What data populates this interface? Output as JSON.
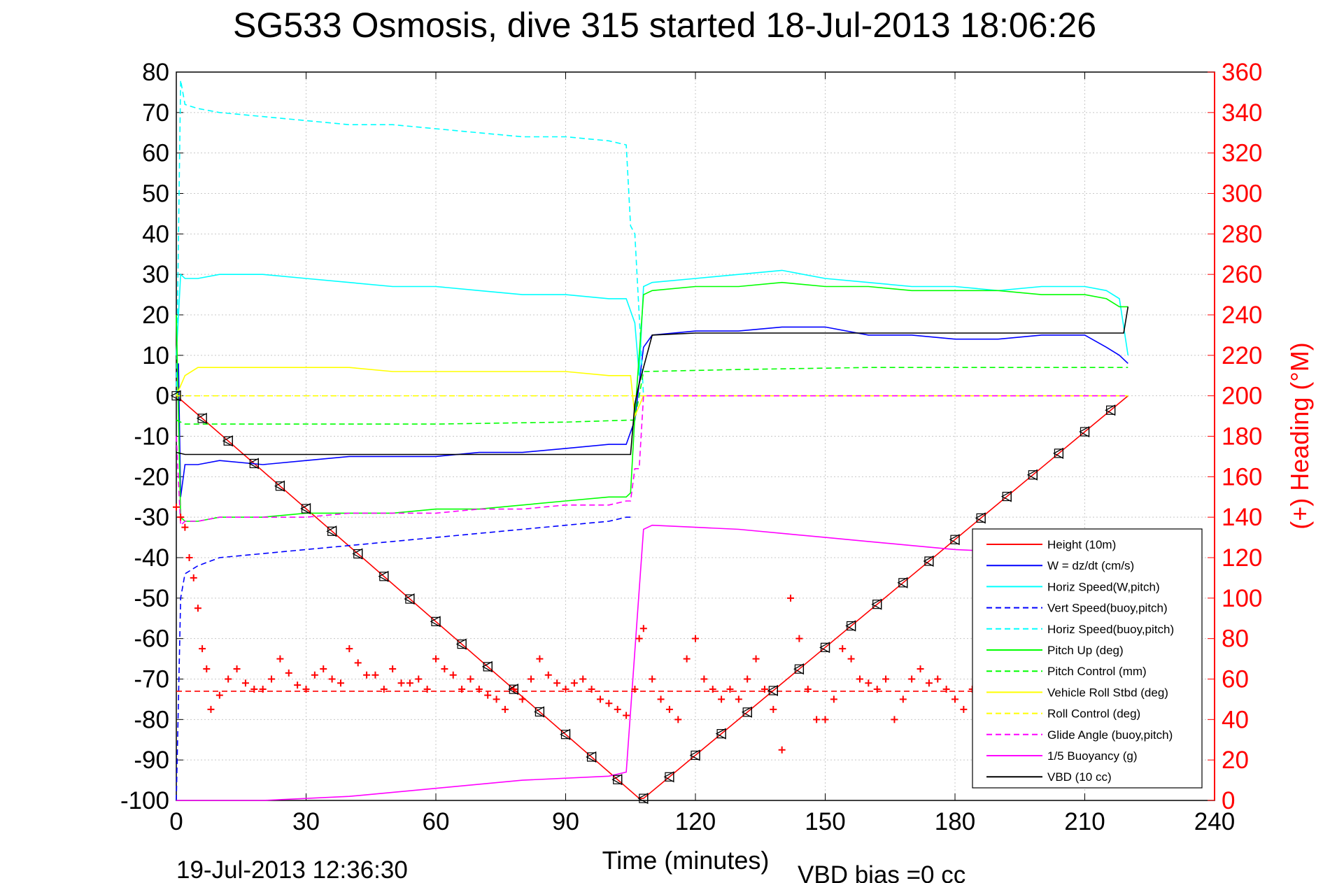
{
  "chart_data": {
    "type": "line",
    "title": "SG533 Osmosis, dive 315 started 18-Jul-2013 18:06:26",
    "xlabel": "Time (minutes)",
    "ylabel": "",
    "y2label": "(+) Heading (°M)",
    "xlim": [
      0,
      240
    ],
    "ylim": [
      -100,
      80
    ],
    "y2lim": [
      0,
      360
    ],
    "x_ticks": [
      "0",
      "30",
      "60",
      "90",
      "120",
      "150",
      "180",
      "210",
      "240"
    ],
    "y_ticks": [
      "80",
      "70",
      "60",
      "50",
      "40",
      "30",
      "20",
      "10",
      "0",
      "-10",
      "-20",
      "-30",
      "-40",
      "-50",
      "-60",
      "-70",
      "-80",
      "-90",
      "-100"
    ],
    "y2_ticks": [
      "360",
      "340",
      "320",
      "300",
      "280",
      "260",
      "240",
      "220",
      "200",
      "180",
      "160",
      "140",
      "120",
      "100",
      "80",
      "60",
      "40",
      "20",
      "0"
    ],
    "grid": true,
    "legend_position": "bottom-right",
    "footer_timestamp": "19-Jul-2013 12:36:30",
    "footer_note": "VBD bias =0 cc",
    "series": [
      {
        "name": "Height (10m)",
        "color": "#ff0000",
        "style": "solid",
        "x": [
          0,
          107,
          108,
          220
        ],
        "y": [
          0,
          -99.5,
          -99.5,
          0
        ]
      },
      {
        "name": "W = dz/dt (cm/s)",
        "color": "#0000ff",
        "style": "solid",
        "x": [
          0,
          0.5,
          1,
          2,
          5,
          10,
          20,
          30,
          40,
          50,
          60,
          70,
          80,
          90,
          100,
          104,
          106,
          108,
          110,
          120,
          130,
          140,
          150,
          160,
          170,
          180,
          190,
          200,
          210,
          215,
          218,
          220
        ],
        "y": [
          5,
          8,
          -25,
          -17,
          -17,
          -16,
          -17,
          -16,
          -15,
          -15,
          -15,
          -14,
          -14,
          -13,
          -12,
          -12,
          -6,
          12,
          15,
          16,
          16,
          17,
          17,
          15,
          15,
          14,
          14,
          15,
          15,
          12,
          10,
          8
        ]
      },
      {
        "name": "Horiz Speed(W,pitch)",
        "color": "#00ffff",
        "style": "solid",
        "x": [
          0,
          1,
          2,
          5,
          10,
          20,
          30,
          40,
          50,
          60,
          70,
          80,
          90,
          100,
          104,
          106,
          107,
          108,
          110,
          120,
          130,
          140,
          150,
          160,
          170,
          180,
          190,
          200,
          210,
          215,
          218,
          220
        ],
        "y": [
          10,
          30,
          29,
          29,
          30,
          30,
          29,
          28,
          27,
          27,
          26,
          25,
          25,
          24,
          24,
          18,
          5,
          27,
          28,
          29,
          30,
          31,
          29,
          28,
          27,
          27,
          26,
          27,
          27,
          26,
          24,
          10
        ]
      },
      {
        "name": "Vert Speed(buoy,pitch)",
        "color": "#0000ff",
        "style": "dashed",
        "x": [
          0,
          1,
          2,
          5,
          10,
          20,
          30,
          40,
          50,
          60,
          70,
          80,
          90,
          100,
          104,
          105
        ],
        "y": [
          -100,
          -50,
          -44,
          -42,
          -40,
          -39,
          -38,
          -37,
          -36,
          -35,
          -34,
          -33,
          -32,
          -31,
          -30,
          -30
        ]
      },
      {
        "name": "Horiz Speed(buoy,pitch)",
        "color": "#00ffff",
        "style": "dashed",
        "x": [
          0,
          1,
          2,
          5,
          10,
          20,
          30,
          40,
          50,
          60,
          70,
          80,
          90,
          100,
          104,
          105,
          106,
          107,
          108
        ],
        "y": [
          0,
          78,
          72,
          71,
          70,
          69,
          68,
          67,
          67,
          66,
          65,
          64,
          64,
          63,
          62,
          42,
          40,
          20,
          0
        ]
      },
      {
        "name": "Pitch Up (deg)",
        "color": "#00ff00",
        "style": "solid",
        "x": [
          0,
          1,
          2,
          5,
          10,
          20,
          30,
          40,
          50,
          60,
          70,
          80,
          90,
          100,
          104,
          105,
          106,
          108,
          110,
          120,
          130,
          140,
          150,
          160,
          170,
          180,
          190,
          200,
          210,
          215,
          218,
          220
        ],
        "y": [
          20,
          -30,
          -31,
          -31,
          -30,
          -30,
          -29,
          -29,
          -29,
          -28,
          -28,
          -27,
          -26,
          -25,
          -25,
          -24,
          -5,
          25,
          26,
          27,
          27,
          28,
          27,
          27,
          26,
          26,
          26,
          25,
          25,
          24,
          22,
          22
        ]
      },
      {
        "name": "Pitch Control (mm)",
        "color": "#00ff00",
        "style": "dashed",
        "x": [
          0,
          2,
          30,
          60,
          90,
          105,
          106,
          108,
          130,
          160,
          190,
          220
        ],
        "y": [
          -6,
          -7,
          -7,
          -7,
          -6.5,
          -6,
          -6,
          6,
          6.5,
          7,
          7,
          7
        ]
      },
      {
        "name": "Vehicle Roll Stbd (deg)",
        "color": "#ffff00",
        "style": "solid",
        "x": [
          0,
          2,
          5,
          10,
          20,
          30,
          40,
          50,
          60,
          70,
          80,
          90,
          100,
          105,
          106,
          108,
          110,
          120,
          130,
          140,
          150,
          160,
          170,
          180,
          190,
          200,
          210,
          215,
          218,
          220
        ],
        "y": [
          0,
          5,
          7,
          7,
          7,
          7,
          7,
          6,
          6,
          6,
          6,
          6,
          5,
          5,
          -5,
          0,
          0,
          0,
          0,
          0,
          0,
          0,
          0,
          0,
          0,
          0,
          0,
          0,
          0,
          0
        ]
      },
      {
        "name": "Roll Control (deg)",
        "color": "#ffff00",
        "style": "dashed",
        "x": [
          0,
          2,
          5,
          30,
          60,
          90,
          104,
          105,
          106,
          108,
          120,
          150,
          180,
          210,
          220
        ],
        "y": [
          0,
          0,
          0,
          0,
          0,
          0,
          0,
          0,
          0,
          0,
          0,
          0,
          0,
          0,
          0
        ]
      },
      {
        "name": "Glide Angle (buoy,pitch)",
        "color": "#ff00ff",
        "style": "dashed",
        "x": [
          0,
          1,
          2,
          5,
          10,
          20,
          30,
          40,
          50,
          60,
          70,
          80,
          90,
          100,
          104,
          105,
          106,
          107,
          108,
          120,
          150,
          180,
          210,
          220
        ],
        "y": [
          -10,
          -32,
          -31,
          -31,
          -30,
          -30,
          -30,
          -29,
          -29,
          -29,
          -28,
          -28,
          -27,
          -27,
          -26,
          -26,
          -18,
          -18,
          0,
          0,
          0,
          0,
          0,
          0
        ]
      },
      {
        "name": "1/5 Buoyancy (g)",
        "color": "#ff00ff",
        "style": "solid",
        "x": [
          0,
          20,
          40,
          60,
          80,
          100,
          104,
          108,
          110,
          120,
          130,
          140,
          150,
          160,
          170,
          180,
          190,
          200,
          210,
          220
        ],
        "y": [
          -100,
          -100,
          -99,
          -97,
          -95,
          -94,
          -93,
          -33,
          -32,
          -32.5,
          -33,
          -34,
          -35,
          -36,
          -37,
          -38,
          -38.5,
          -39,
          -39.5,
          -40
        ]
      },
      {
        "name": "VBD (10 cc)",
        "color": "#000000",
        "style": "solid",
        "x": [
          0,
          2,
          30,
          60,
          90,
          105,
          106,
          107,
          110,
          120,
          150,
          180,
          210,
          219,
          220
        ],
        "y": [
          -14,
          -14.5,
          -14.5,
          -14.5,
          -14.5,
          -14.5,
          -2,
          3,
          15,
          15.5,
          15.5,
          15.5,
          15.5,
          15.5,
          22
        ]
      }
    ],
    "heading_target": {
      "name": "heading target",
      "color": "#ff0000",
      "style": "dashed",
      "axis": "right",
      "x": [
        0,
        220
      ],
      "y": [
        54,
        54
      ]
    },
    "heading_samples": {
      "name": "(+) Heading",
      "color": "#ff0000",
      "marker": "+",
      "axis": "right",
      "x": [
        0,
        1,
        2,
        3,
        4,
        5,
        6,
        7,
        8,
        10,
        12,
        14,
        16,
        18,
        20,
        22,
        24,
        26,
        28,
        30,
        32,
        34,
        36,
        38,
        40,
        42,
        44,
        46,
        48,
        50,
        52,
        54,
        56,
        58,
        60,
        62,
        64,
        66,
        68,
        70,
        72,
        74,
        76,
        78,
        80,
        82,
        84,
        86,
        88,
        90,
        92,
        94,
        96,
        98,
        100,
        102,
        104,
        106,
        107,
        108,
        110,
        112,
        114,
        116,
        118,
        120,
        122,
        124,
        126,
        128,
        130,
        132,
        134,
        136,
        138,
        140,
        142,
        144,
        146,
        148,
        150,
        152,
        154,
        156,
        158,
        160,
        162,
        164,
        166,
        168,
        170,
        172,
        174,
        176,
        178,
        180,
        182,
        184
      ],
      "y": [
        145,
        140,
        135,
        120,
        110,
        95,
        75,
        65,
        45,
        52,
        60,
        65,
        58,
        55,
        55,
        60,
        70,
        63,
        57,
        55,
        62,
        65,
        60,
        58,
        75,
        68,
        62,
        62,
        55,
        65,
        58,
        58,
        60,
        55,
        70,
        65,
        62,
        55,
        60,
        55,
        52,
        50,
        45,
        55,
        50,
        60,
        70,
        62,
        58,
        55,
        58,
        60,
        55,
        50,
        48,
        45,
        42,
        55,
        80,
        85,
        60,
        50,
        45,
        40,
        70,
        80,
        60,
        55,
        50,
        55,
        50,
        60,
        70,
        55,
        45,
        25,
        100,
        80,
        55,
        40,
        40,
        50,
        75,
        70,
        60,
        58,
        55,
        60,
        40,
        50,
        60,
        65,
        58,
        60,
        55,
        50,
        45,
        55
      ]
    }
  }
}
